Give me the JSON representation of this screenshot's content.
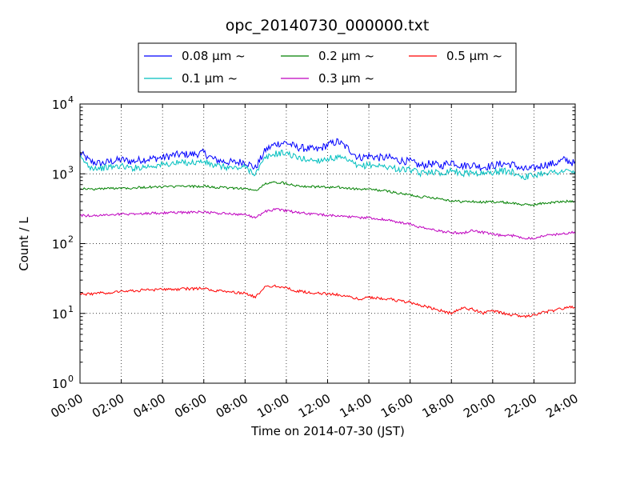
{
  "chart_data": {
    "type": "line",
    "title": "opc_20140730_000000.txt",
    "xlabel": "Time on 2014-07-30 (JST)",
    "ylabel": "Count / L",
    "x_range": [
      "00:00",
      "24:00"
    ],
    "x_ticks": [
      "00:00",
      "02:00",
      "04:00",
      "06:00",
      "08:00",
      "10:00",
      "12:00",
      "14:00",
      "16:00",
      "18:00",
      "20:00",
      "22:00",
      "24:00"
    ],
    "y_scale": "log",
    "ylim": [
      1,
      10000
    ],
    "y_ticks": [
      {
        "base": "10",
        "exp": "0",
        "value": 1
      },
      {
        "base": "10",
        "exp": "1",
        "value": 10
      },
      {
        "base": "10",
        "exp": "2",
        "value": 100
      },
      {
        "base": "10",
        "exp": "3",
        "value": 1000
      },
      {
        "base": "10",
        "exp": "4",
        "value": 10000
      }
    ],
    "grid": true,
    "legend_placement": "top-center",
    "x": [
      0,
      0.5,
      1,
      1.5,
      2,
      2.5,
      3,
      3.5,
      4,
      4.5,
      5,
      5.5,
      6,
      6.5,
      7,
      7.5,
      8,
      8.5,
      9,
      9.5,
      10,
      10.5,
      11,
      11.5,
      12,
      12.5,
      13,
      13.5,
      14,
      14.5,
      15,
      15.5,
      16,
      16.5,
      17,
      17.5,
      18,
      18.5,
      19,
      19.5,
      20,
      20.5,
      21,
      21.5,
      22,
      22.5,
      23,
      23.5,
      24
    ],
    "series": [
      {
        "name": "0.08 μm ~",
        "color": "#0000ff",
        "values": [
          2000,
          1500,
          1400,
          1500,
          1600,
          1500,
          1600,
          1650,
          1700,
          1850,
          1900,
          1900,
          2000,
          1600,
          1500,
          1450,
          1500,
          1200,
          2200,
          2700,
          2800,
          2400,
          2300,
          2200,
          2600,
          2900,
          2300,
          1700,
          1800,
          1700,
          1700,
          1550,
          1500,
          1300,
          1400,
          1300,
          1500,
          1300,
          1350,
          1250,
          1300,
          1400,
          1350,
          1150,
          1200,
          1350,
          1400,
          1600,
          1400
        ]
      },
      {
        "name": "0.1 μm ~",
        "color": "#00bfbf",
        "values": [
          1700,
          1250,
          1200,
          1250,
          1300,
          1200,
          1250,
          1300,
          1350,
          1400,
          1450,
          1450,
          1500,
          1300,
          1250,
          1200,
          1250,
          1000,
          1700,
          1950,
          2000,
          1700,
          1600,
          1550,
          1650,
          1700,
          1550,
          1250,
          1350,
          1300,
          1250,
          1150,
          1150,
          1000,
          1100,
          1000,
          1150,
          1000,
          1050,
          1000,
          1050,
          1100,
          1050,
          900,
          950,
          1050,
          1050,
          1100,
          1050
        ]
      },
      {
        "name": "0.2 μm ~",
        "color": "#008000",
        "values": [
          620,
          600,
          610,
          620,
          630,
          625,
          640,
          645,
          650,
          655,
          660,
          660,
          665,
          640,
          630,
          625,
          615,
          570,
          720,
          760,
          730,
          680,
          660,
          650,
          640,
          640,
          620,
          600,
          600,
          580,
          560,
          520,
          500,
          470,
          460,
          440,
          410,
          400,
          400,
          390,
          400,
          390,
          380,
          360,
          360,
          380,
          390,
          400,
          410
        ]
      },
      {
        "name": "0.3 μm ~",
        "color": "#bf00bf",
        "values": [
          255,
          250,
          255,
          260,
          265,
          265,
          270,
          272,
          275,
          278,
          280,
          282,
          285,
          275,
          270,
          265,
          262,
          235,
          290,
          310,
          295,
          280,
          270,
          260,
          255,
          250,
          245,
          235,
          235,
          225,
          215,
          200,
          190,
          170,
          160,
          150,
          145,
          140,
          155,
          145,
          135,
          130,
          130,
          120,
          120,
          130,
          135,
          140,
          145
        ]
      },
      {
        "name": "0.5 μm ~",
        "color": "#ff0000",
        "values": [
          19,
          19,
          19.5,
          20,
          21,
          21,
          21.5,
          21.5,
          22,
          22,
          22.5,
          22.5,
          23,
          21,
          20.5,
          20,
          19.5,
          17,
          24,
          25,
          23,
          21,
          20,
          19.5,
          19,
          18.5,
          17.5,
          16,
          17,
          16.5,
          16,
          15,
          14.5,
          13,
          12,
          11,
          10,
          12,
          11.5,
          10,
          11,
          10,
          9.5,
          9,
          9.5,
          10.5,
          11,
          12,
          12.5
        ]
      }
    ]
  }
}
